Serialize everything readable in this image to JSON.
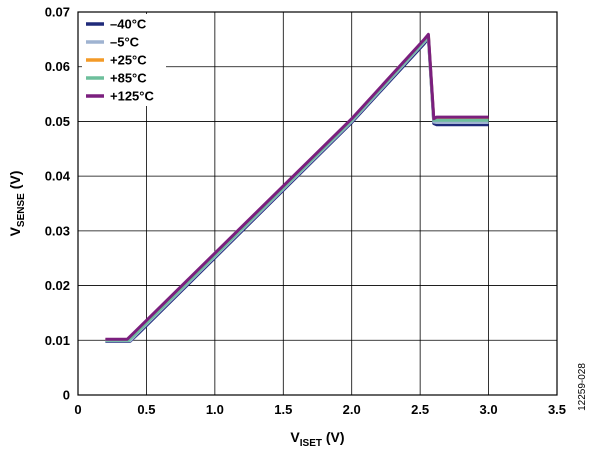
{
  "chart_data": {
    "type": "line",
    "xlabel": {
      "prefix": "V",
      "sub": "ISET",
      "suffix": " (V)"
    },
    "ylabel": {
      "prefix": "V",
      "sub": "SENSE",
      "suffix": " (V)"
    },
    "xlim": [
      0,
      3.5
    ],
    "ylim": [
      0,
      0.07
    ],
    "xticks": [
      0,
      0.5,
      1.0,
      1.5,
      2.0,
      2.5,
      3.0,
      3.5
    ],
    "xtick_labels": [
      "0",
      "0.5",
      "1.0",
      "1.5",
      "2.0",
      "2.5",
      "3.0",
      "3.5"
    ],
    "yticks": [
      0,
      0.01,
      0.02,
      0.03,
      0.04,
      0.05,
      0.06,
      0.07
    ],
    "ytick_labels": [
      "0",
      "0.01",
      "0.02",
      "0.03",
      "0.04",
      "0.05",
      "0.06",
      "0.07"
    ],
    "grid": true,
    "legend_position": "top-left",
    "figure_id": "12259-028",
    "series": [
      {
        "name": "–40°C",
        "color": "#1f2a7a",
        "x": [
          0.2,
          0.38,
          0.44,
          2.0,
          2.53,
          2.56,
          2.6,
          2.62,
          3.0
        ],
        "y": [
          0.0098,
          0.0098,
          0.0112,
          0.0498,
          0.0642,
          0.0652,
          0.0496,
          0.0494,
          0.0494
        ]
      },
      {
        "name": "–5°C",
        "color": "#9fb3d1",
        "x": [
          0.2,
          0.38,
          0.43,
          2.0,
          2.53,
          2.56,
          2.6,
          2.62,
          3.0
        ],
        "y": [
          0.0099,
          0.0099,
          0.0112,
          0.05,
          0.0645,
          0.0654,
          0.0499,
          0.0498,
          0.0498
        ]
      },
      {
        "name": "+25°C",
        "color": "#f39a27",
        "x": [
          0.2,
          0.37,
          0.42,
          2.0,
          2.53,
          2.56,
          2.6,
          2.62,
          3.0
        ],
        "y": [
          0.0101,
          0.0101,
          0.0113,
          0.0503,
          0.0648,
          0.0657,
          0.0504,
          0.0506,
          0.0506
        ]
      },
      {
        "name": "+85°C",
        "color": "#6dbf9c",
        "x": [
          0.2,
          0.37,
          0.42,
          2.0,
          2.53,
          2.56,
          2.6,
          2.62,
          3.0
        ],
        "y": [
          0.01,
          0.01,
          0.0112,
          0.0502,
          0.0647,
          0.0656,
          0.0502,
          0.0502,
          0.0502
        ]
      },
      {
        "name": "+125°C",
        "color": "#7b1f7e",
        "x": [
          0.2,
          0.36,
          0.41,
          2.0,
          2.53,
          2.56,
          2.6,
          2.62,
          3.0
        ],
        "y": [
          0.0102,
          0.0102,
          0.0114,
          0.0505,
          0.065,
          0.0659,
          0.0505,
          0.0508,
          0.0508
        ]
      }
    ]
  }
}
